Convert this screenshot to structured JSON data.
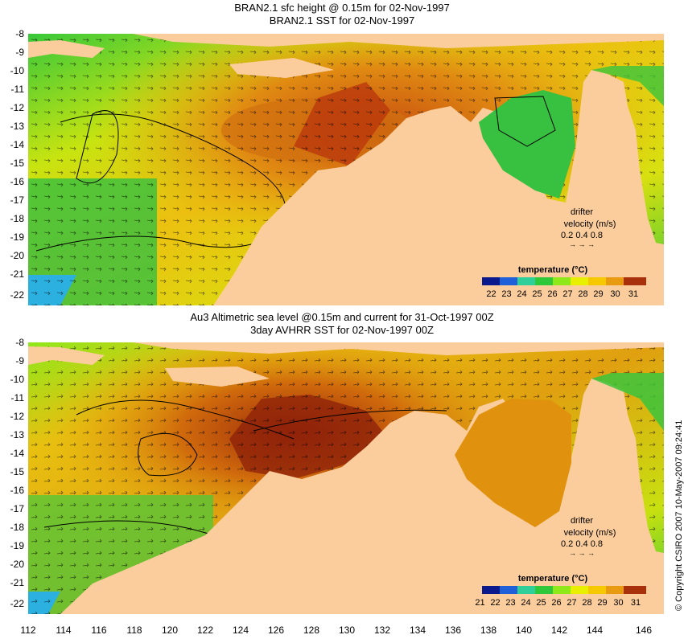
{
  "top_panel": {
    "title_line1": "BRAN2.1 sfc height @ 0.15m for 02-Nov-1997",
    "title_line2": "BRAN2.1 SST for 02-Nov-1997",
    "drifter_label": "drifter",
    "velocity_label": "velocity (m/s)",
    "velocity_scale": "0.2 0.4 0.8",
    "colorbar_title": "temperature (°C)",
    "colorbar_ticks": [
      "22",
      "23",
      "24",
      "25",
      "26",
      "27",
      "28",
      "29",
      "30",
      "31"
    ]
  },
  "bottom_panel": {
    "title_line1": "Au3 Altimetric sea level  @0.15m and current for 31-Oct-1997 00Z",
    "title_line2": "3day AVHRR SST for 02-Nov-1997 00Z",
    "drifter_label": "drifter",
    "velocity_label": "velocity (m/s)",
    "velocity_scale": "0.2 0.4 0.8",
    "colorbar_title": "temperature (°C)",
    "colorbar_ticks": [
      "21",
      "22",
      "23",
      "24",
      "25",
      "26",
      "27",
      "28",
      "29",
      "30",
      "31"
    ]
  },
  "lat_labels": [
    "-8",
    "-9",
    "-10",
    "-11",
    "-12",
    "-13",
    "-14",
    "-15",
    "-16",
    "-17",
    "-18",
    "-19",
    "-20",
    "-21",
    "-22"
  ],
  "lon_labels": [
    "112",
    "114",
    "116",
    "118",
    "120",
    "122",
    "124",
    "126",
    "128",
    "130",
    "132",
    "134",
    "136",
    "138",
    "140",
    "142",
    "144",
    "146"
  ],
  "credit": "© Copyright CSIRO 2007  10-May-2007 09:24:41",
  "colors": {
    "land": "#fccd9c",
    "sst_scale": [
      "#0a1a8c",
      "#1f5fd8",
      "#2fb6e8",
      "#30cf9a",
      "#2fc83a",
      "#8ee81a",
      "#e8f000",
      "#f5c800",
      "#e89a10",
      "#d2660a",
      "#a8300a",
      "#7a1208"
    ]
  }
}
